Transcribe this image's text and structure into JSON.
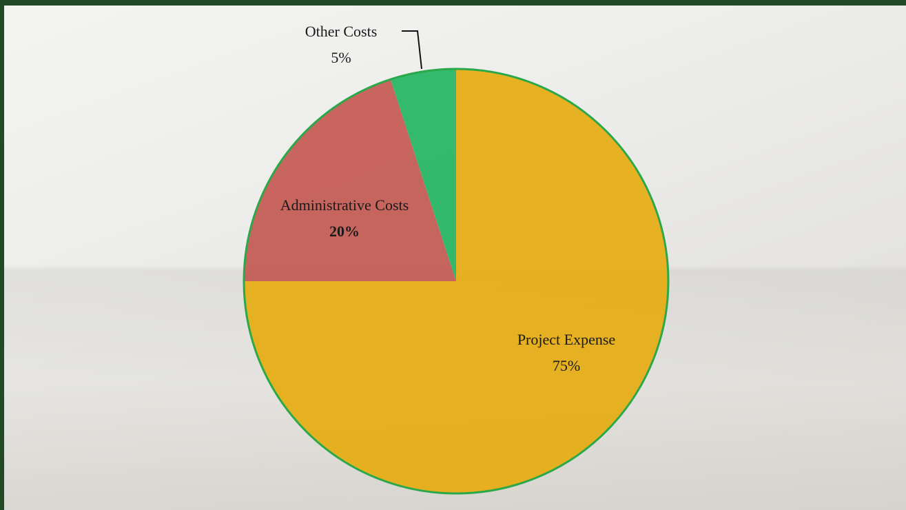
{
  "chart_data": {
    "type": "pie",
    "categories": [
      "Project Expense",
      "Administrative Costs",
      "Other Costs"
    ],
    "values": [
      75,
      20,
      5
    ],
    "value_labels": [
      "75%",
      "20%",
      "5%"
    ],
    "colors": [
      "#e6ab0c",
      "#c2554f",
      "#1fb45e"
    ]
  }
}
